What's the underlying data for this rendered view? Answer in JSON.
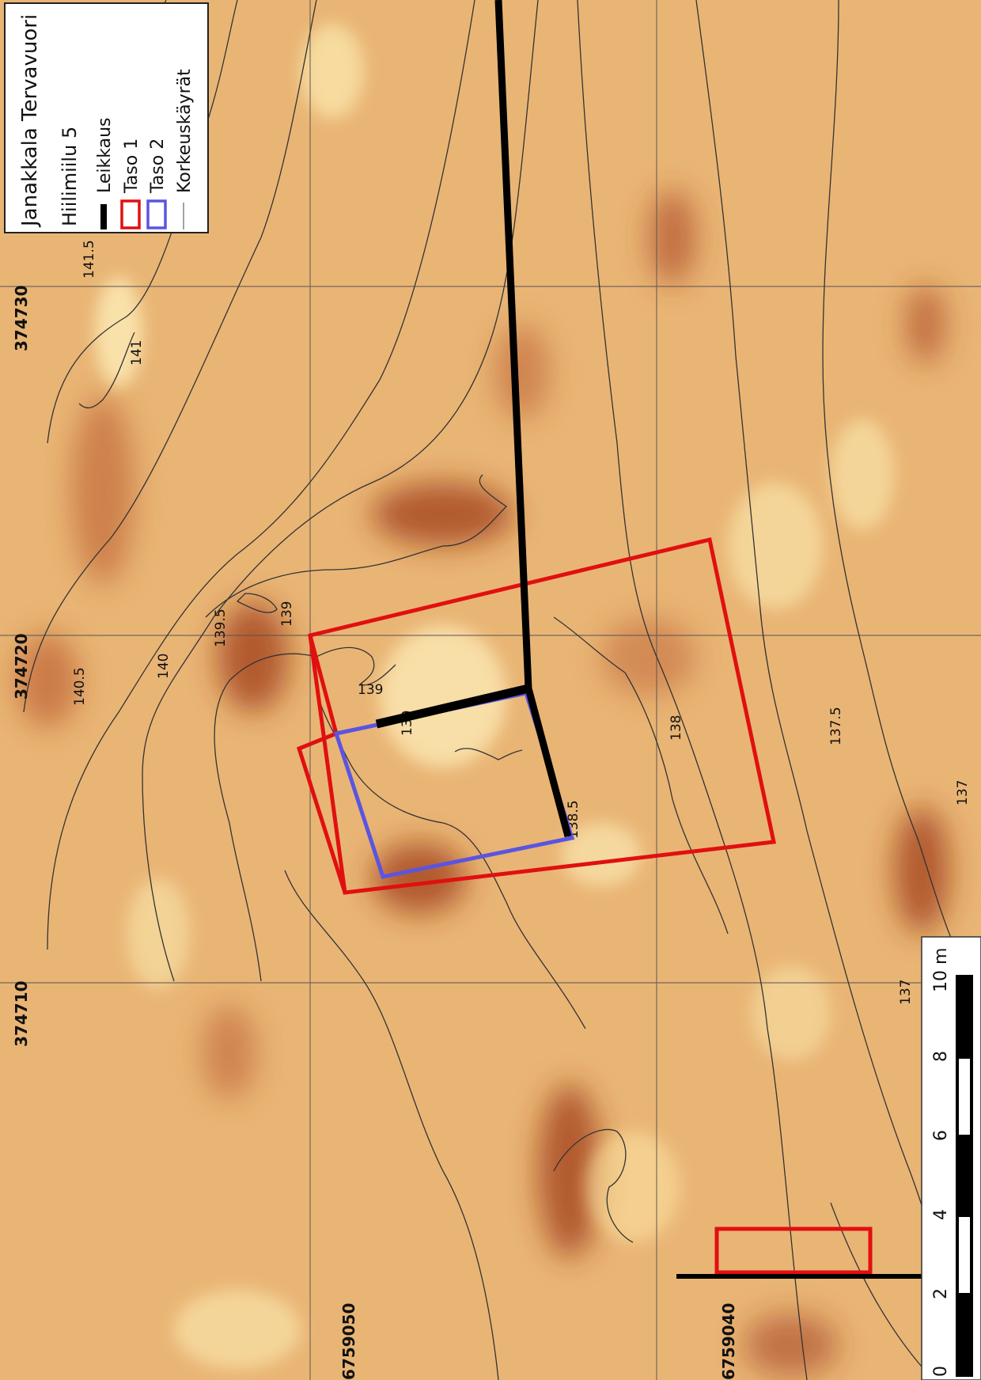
{
  "legend": {
    "title": "Janakkala Tervavuori",
    "subtitle": "Hiilimiilu 5",
    "items": [
      {
        "label": "Leikkaus",
        "symbol": "black-line",
        "color": "#000000"
      },
      {
        "label": "Taso 1",
        "symbol": "red-box",
        "color": "#e01010"
      },
      {
        "label": "Taso 2",
        "symbol": "blue-box",
        "color": "#5a55e0"
      },
      {
        "label": "Korkeuskäyrät",
        "symbol": "thin-line",
        "color": "#666666"
      }
    ]
  },
  "grid": {
    "easting_labels": [
      "374730",
      "374720",
      "374710"
    ],
    "northing_labels": [
      "6759050",
      "6759040"
    ]
  },
  "contours": {
    "labels": [
      "141.5",
      "141",
      "140.5",
      "140",
      "139.5",
      "139",
      "139",
      "139",
      "138.5",
      "138",
      "137.5",
      "137",
      "137"
    ]
  },
  "scalebar": {
    "ticks": [
      "0",
      "2",
      "4",
      "6",
      "8",
      "10 m"
    ]
  },
  "colors": {
    "background": "#e8b070",
    "dark": "#9a3a1a",
    "light": "#fcefb8",
    "taso1": "#e01010",
    "taso2": "#5a55e0",
    "leikkaus": "#000000",
    "contour": "#333333"
  }
}
